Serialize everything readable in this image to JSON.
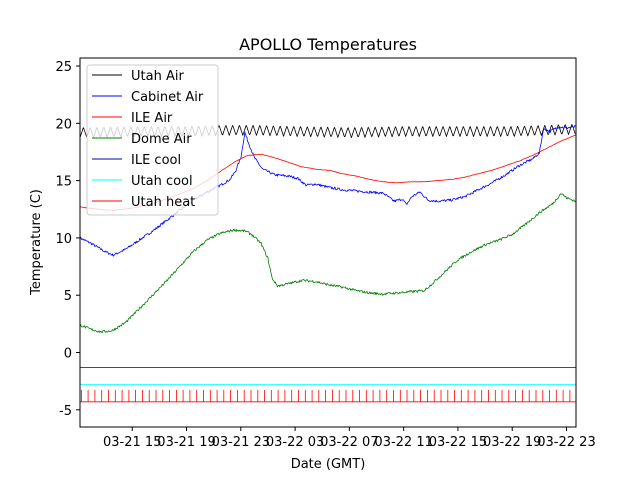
{
  "chart_data": {
    "type": "line",
    "title": "APOLLO Temperatures",
    "xlabel": "Date (GMT)",
    "ylabel": "Temperature (C)",
    "xlim": [
      11.15,
      47.7
    ],
    "ylim": [
      -6.5,
      25.7
    ],
    "yticks": [
      -5,
      0,
      5,
      10,
      15,
      20,
      25
    ],
    "xticks": [
      {
        "value": 15,
        "label": "03-21 15"
      },
      {
        "value": 19,
        "label": "03-21 19"
      },
      {
        "value": 23,
        "label": "03-21 23"
      },
      {
        "value": 27,
        "label": "03-22 03"
      },
      {
        "value": 31,
        "label": "03-22 07"
      },
      {
        "value": 35,
        "label": "03-22 11"
      },
      {
        "value": 39,
        "label": "03-22 15"
      },
      {
        "value": 43,
        "label": "03-22 19"
      },
      {
        "value": 47,
        "label": "03-22 23"
      }
    ],
    "legend": {
      "placement": "top-left"
    },
    "series": [
      {
        "name": "Utah Air",
        "color": "#000000",
        "style": "oscillating",
        "baseline": [
          [
            11.15,
            19.2
          ],
          [
            16,
            19.3
          ],
          [
            19,
            19.3
          ],
          [
            22,
            19.4
          ],
          [
            24,
            19.4
          ],
          [
            27,
            19.3
          ],
          [
            31,
            19.2
          ],
          [
            35,
            19.3
          ],
          [
            39,
            19.3
          ],
          [
            43,
            19.3
          ],
          [
            47.7,
            19.5
          ]
        ],
        "amplitude": 0.45,
        "period_hours": 0.5
      },
      {
        "name": "Cabinet Air",
        "color": "#0000ff",
        "style": "noisy",
        "points": [
          [
            11.15,
            10.0
          ],
          [
            12,
            9.5
          ],
          [
            13,
            8.8
          ],
          [
            13.6,
            8.5
          ],
          [
            14.5,
            9.0
          ],
          [
            15.5,
            9.8
          ],
          [
            16.5,
            10.6
          ],
          [
            17.5,
            11.5
          ],
          [
            18.5,
            12.4
          ],
          [
            19.5,
            13.3
          ],
          [
            20.5,
            14.0
          ],
          [
            21.5,
            14.6
          ],
          [
            22.2,
            15.1
          ],
          [
            22.6,
            15.8
          ],
          [
            23.0,
            17.0
          ],
          [
            23.3,
            19.2
          ],
          [
            23.5,
            18.5
          ],
          [
            24,
            17.0
          ],
          [
            24.6,
            16.0
          ],
          [
            25.5,
            15.5
          ],
          [
            26.5,
            15.4
          ],
          [
            27.2,
            15.2
          ],
          [
            27.8,
            14.6
          ],
          [
            28.5,
            14.7
          ],
          [
            29.5,
            14.4
          ],
          [
            30.5,
            14.2
          ],
          [
            31.5,
            14.1
          ],
          [
            32.5,
            14.0
          ],
          [
            33.5,
            13.9
          ],
          [
            34.3,
            13.2
          ],
          [
            34.9,
            13.4
          ],
          [
            35.2,
            12.9
          ],
          [
            35.6,
            13.6
          ],
          [
            36.2,
            14.0
          ],
          [
            36.8,
            13.3
          ],
          [
            37.5,
            13.2
          ],
          [
            38.5,
            13.3
          ],
          [
            39.5,
            13.6
          ],
          [
            40.5,
            14.2
          ],
          [
            41.5,
            14.8
          ],
          [
            42.5,
            15.5
          ],
          [
            43.5,
            16.3
          ],
          [
            44.5,
            16.9
          ],
          [
            45.0,
            17.4
          ],
          [
            45.3,
            19.5
          ],
          [
            45.8,
            19.3
          ],
          [
            46.4,
            19.7
          ],
          [
            47,
            19.6
          ],
          [
            47.7,
            19.7
          ]
        ]
      },
      {
        "name": "ILE Air",
        "color": "#ff0000",
        "style": "smooth",
        "points": [
          [
            11.15,
            12.7
          ],
          [
            12.5,
            12.5
          ],
          [
            13.6,
            12.4
          ],
          [
            15,
            12.6
          ],
          [
            16.5,
            13.0
          ],
          [
            18,
            13.6
          ],
          [
            19.5,
            14.3
          ],
          [
            20.5,
            15.0
          ],
          [
            21.5,
            15.8
          ],
          [
            22.5,
            16.6
          ],
          [
            23.5,
            17.2
          ],
          [
            24.5,
            17.3
          ],
          [
            25.5,
            17.0
          ],
          [
            26.5,
            16.6
          ],
          [
            27.5,
            16.2
          ],
          [
            28.5,
            16.0
          ],
          [
            29.5,
            15.9
          ],
          [
            30.5,
            15.6
          ],
          [
            31.5,
            15.4
          ],
          [
            32.5,
            15.1
          ],
          [
            33.5,
            14.9
          ],
          [
            34.5,
            14.8
          ],
          [
            35.5,
            14.9
          ],
          [
            36.5,
            14.9
          ],
          [
            37.5,
            15.0
          ],
          [
            38.5,
            15.1
          ],
          [
            39.5,
            15.3
          ],
          [
            40.5,
            15.6
          ],
          [
            41.5,
            15.9
          ],
          [
            42.5,
            16.3
          ],
          [
            43.5,
            16.7
          ],
          [
            44.5,
            17.2
          ],
          [
            45.5,
            17.8
          ],
          [
            46.5,
            18.4
          ],
          [
            47.7,
            19.0
          ]
        ]
      },
      {
        "name": "Dome Air",
        "color": "#008000",
        "style": "noisy",
        "points": [
          [
            11.15,
            2.4
          ],
          [
            12,
            2.0
          ],
          [
            12.7,
            1.8
          ],
          [
            13.5,
            1.9
          ],
          [
            14.5,
            2.6
          ],
          [
            15.5,
            3.8
          ],
          [
            16.5,
            5.0
          ],
          [
            17.5,
            6.2
          ],
          [
            18.5,
            7.5
          ],
          [
            19.5,
            8.8
          ],
          [
            20.5,
            9.8
          ],
          [
            21.5,
            10.4
          ],
          [
            22.5,
            10.7
          ],
          [
            23.3,
            10.6
          ],
          [
            23.8,
            10.3
          ],
          [
            24.5,
            9.5
          ],
          [
            25.0,
            8.2
          ],
          [
            25.3,
            6.5
          ],
          [
            25.7,
            5.8
          ],
          [
            26.5,
            6.0
          ],
          [
            27.5,
            6.3
          ],
          [
            28.5,
            6.2
          ],
          [
            29.5,
            5.9
          ],
          [
            30.5,
            5.7
          ],
          [
            31.5,
            5.4
          ],
          [
            32.5,
            5.2
          ],
          [
            33.5,
            5.1
          ],
          [
            34.5,
            5.2
          ],
          [
            35.5,
            5.3
          ],
          [
            36.5,
            5.4
          ],
          [
            37.0,
            5.9
          ],
          [
            38.0,
            7.0
          ],
          [
            39.0,
            8.1
          ],
          [
            40.0,
            8.8
          ],
          [
            41.0,
            9.4
          ],
          [
            42.0,
            9.8
          ],
          [
            43.0,
            10.3
          ],
          [
            44.0,
            11.2
          ],
          [
            45.0,
            12.2
          ],
          [
            46.0,
            13.0
          ],
          [
            46.6,
            13.9
          ],
          [
            47.0,
            13.5
          ],
          [
            47.7,
            13.2
          ]
        ]
      },
      {
        "name": "ILE cool",
        "color": "#0000aa",
        "style": "flat",
        "points": [
          [
            11.15,
            -1.3
          ],
          [
            47.7,
            -1.3
          ]
        ]
      },
      {
        "name": "Utah cool",
        "color": "#00ffff",
        "style": "flat",
        "points": [
          [
            11.15,
            -2.8
          ],
          [
            47.7,
            -2.8
          ]
        ]
      },
      {
        "name": "Utah heat",
        "color": "#ff0000",
        "style": "pulses",
        "low": -4.3,
        "high": -3.3,
        "period_hours": 0.5
      }
    ]
  }
}
